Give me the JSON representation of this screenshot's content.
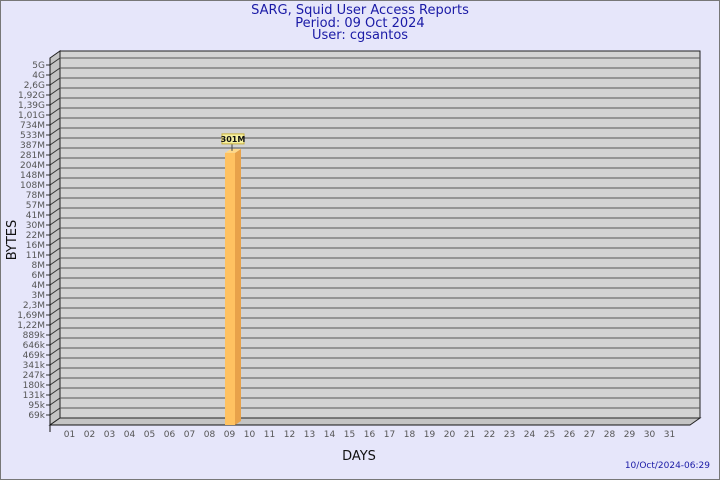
{
  "chart_data": {
    "type": "bar",
    "title": "SARG, Squid User Access Reports",
    "subtitle": [
      "Period: 09 Oct 2024",
      "User: cgsantos"
    ],
    "xlabel": "DAYS",
    "ylabel": "BYTES",
    "y_scale": "log",
    "y_ticks": [
      "5G",
      "4G",
      "2,6G",
      "1,92G",
      "1,39G",
      "1,01G",
      "734M",
      "533M",
      "387M",
      "281M",
      "204M",
      "148M",
      "108M",
      "78M",
      "57M",
      "41M",
      "30M",
      "22M",
      "16M",
      "11M",
      "8M",
      "6M",
      "4M",
      "3M",
      "2,3M",
      "1,69M",
      "1,22M",
      "889k",
      "646k",
      "469k",
      "341k",
      "247k",
      "180k",
      "131k",
      "95k",
      "69k"
    ],
    "categories": [
      "01",
      "02",
      "03",
      "04",
      "05",
      "06",
      "07",
      "08",
      "09",
      "10",
      "11",
      "12",
      "13",
      "14",
      "15",
      "16",
      "17",
      "18",
      "19",
      "20",
      "21",
      "22",
      "23",
      "24",
      "25",
      "26",
      "27",
      "28",
      "29",
      "30",
      "31"
    ],
    "bars": [
      {
        "day": "09",
        "value": 301000000,
        "label": "301M"
      }
    ],
    "grid": true,
    "colors": {
      "bar": "#ffc261",
      "bar_side": "#e8a24a",
      "plot_bg": "#d3d3d3",
      "title": "#1a1aa6"
    }
  },
  "footer": {
    "timestamp": "10/Oct/2024-06:29"
  }
}
